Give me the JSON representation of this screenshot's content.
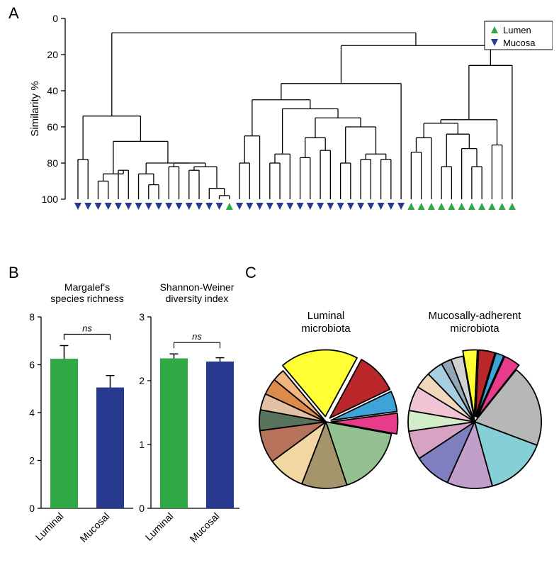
{
  "panelA": {
    "label": "A",
    "yaxis_label": "Similarity %",
    "yticks": [
      0,
      20,
      40,
      60,
      80,
      100
    ],
    "ylim": [
      0,
      100
    ],
    "legend": {
      "items": [
        {
          "label": "Lumen",
          "symbol": "triangle-up",
          "color": "#2fa846"
        },
        {
          "label": "Mucosa",
          "symbol": "triangle-down",
          "color": "#283a8f"
        }
      ],
      "box_stroke": "#000000",
      "box_fill": "#ffffff"
    },
    "line_color": "#000000",
    "line_width": 1.3,
    "tree": {
      "h": 8,
      "children": [
        {
          "h": 54,
          "children": [
            {
              "h": 78,
              "children": [
                {
                  "leaf": "M"
                },
                {
                  "leaf": "M"
                }
              ]
            },
            {
              "h": 68,
              "children": [
                {
                  "h": 86,
                  "children": [
                    {
                      "h": 90,
                      "children": [
                        {
                          "leaf": "M"
                        },
                        {
                          "leaf": "M"
                        }
                      ]
                    },
                    {
                      "h": 84,
                      "children": [
                        {
                          "leaf": "M"
                        },
                        {
                          "leaf": "M"
                        }
                      ]
                    }
                  ]
                },
                {
                  "h": 80,
                  "children": [
                    {
                      "h": 86,
                      "children": [
                        {
                          "leaf": "M"
                        },
                        {
                          "h": 92,
                          "children": [
                            {
                              "leaf": "M"
                            },
                            {
                              "leaf": "M"
                            }
                          ]
                        }
                      ]
                    },
                    {
                      "h": 80,
                      "children": [
                        {
                          "h": 82,
                          "children": [
                            {
                              "leaf": "M"
                            },
                            {
                              "leaf": "M"
                            }
                          ]
                        },
                        {
                          "h": 82,
                          "children": [
                            {
                              "h": 84,
                              "children": [
                                {
                                  "leaf": "M"
                                },
                                {
                                  "leaf": "M"
                                }
                              ]
                            },
                            {
                              "h": 94,
                              "children": [
                                {
                                  "leaf": "M"
                                },
                                {
                                  "h": 98,
                                  "children": [
                                    {
                                      "leaf": "M"
                                    },
                                    {
                                      "leaf": "L"
                                    }
                                  ]
                                }
                              ]
                            }
                          ]
                        }
                      ]
                    }
                  ]
                }
              ]
            }
          ]
        },
        {
          "h": 15,
          "children": [
            {
              "h": 36,
              "children": [
                {
                  "h": 45,
                  "children": [
                    {
                      "h": 65,
                      "children": [
                        {
                          "h": 80,
                          "children": [
                            {
                              "leaf": "M"
                            },
                            {
                              "leaf": "M"
                            }
                          ]
                        },
                        {
                          "leaf": "M"
                        }
                      ]
                    },
                    {
                      "h": 50,
                      "children": [
                        {
                          "h": 75,
                          "children": [
                            {
                              "h": 80,
                              "children": [
                                {
                                  "leaf": "M"
                                },
                                {
                                  "leaf": "M"
                                }
                              ]
                            },
                            {
                              "leaf": "M"
                            }
                          ]
                        },
                        {
                          "h": 55,
                          "children": [
                            {
                              "h": 66,
                              "children": [
                                {
                                  "h": 77,
                                  "children": [
                                    {
                                      "leaf": "M"
                                    },
                                    {
                                      "leaf": "M"
                                    }
                                  ]
                                },
                                {
                                  "h": 73,
                                  "children": [
                                    {
                                      "leaf": "M"
                                    },
                                    {
                                      "leaf": "M"
                                    }
                                  ]
                                }
                              ]
                            },
                            {
                              "h": 60,
                              "children": [
                                {
                                  "h": 80,
                                  "children": [
                                    {
                                      "leaf": "M"
                                    },
                                    {
                                      "leaf": "M"
                                    }
                                  ]
                                },
                                {
                                  "h": 75,
                                  "children": [
                                    {
                                      "h": 78,
                                      "children": [
                                        {
                                          "leaf": "M"
                                        },
                                        {
                                          "leaf": "M"
                                        }
                                      ]
                                    },
                                    {
                                      "h": 78,
                                      "children": [
                                        {
                                          "leaf": "M"
                                        },
                                        {
                                          "leaf": "M"
                                        }
                                      ]
                                    }
                                  ]
                                }
                              ]
                            }
                          ]
                        }
                      ]
                    }
                  ]
                },
                {
                  "leaf": "M"
                }
              ]
            },
            {
              "h": 26,
              "children": [
                {
                  "h": 56,
                  "children": [
                    {
                      "h": 58,
                      "children": [
                        {
                          "h": 66,
                          "children": [
                            {
                              "h": 74,
                              "children": [
                                {
                                  "leaf": "L"
                                },
                                {
                                  "leaf": "L"
                                }
                              ]
                            },
                            {
                              "leaf": "L"
                            }
                          ]
                        },
                        {
                          "h": 64,
                          "children": [
                            {
                              "h": 82,
                              "children": [
                                {
                                  "leaf": "L"
                                },
                                {
                                  "leaf": "L"
                                }
                              ]
                            },
                            {
                              "h": 72,
                              "children": [
                                {
                                  "leaf": "L"
                                },
                                {
                                  "h": 82,
                                  "children": [
                                    {
                                      "leaf": "L"
                                    },
                                    {
                                      "leaf": "L"
                                    }
                                  ]
                                }
                              ]
                            }
                          ]
                        }
                      ]
                    },
                    {
                      "h": 70,
                      "children": [
                        {
                          "leaf": "L"
                        },
                        {
                          "leaf": "L"
                        }
                      ]
                    }
                  ]
                },
                {
                  "leaf": "L"
                }
              ]
            }
          ]
        }
      ]
    }
  },
  "panelB": {
    "label": "B",
    "axis_color": "#000000",
    "axis_width": 1.3,
    "ns_label": "ns",
    "ns_font_style": "italic",
    "xcat_labels": [
      "Luminal",
      "Mucosal"
    ],
    "xlabel_angle": -45,
    "xlabel_fontsize": 14,
    "charts": [
      {
        "title": "Margalef's\nspecies richness",
        "ylim": [
          0,
          8
        ],
        "yticks": [
          0,
          2,
          4,
          6,
          8
        ],
        "tick_fontsize": 14,
        "bars": [
          {
            "mean": 6.25,
            "err": 0.55,
            "color": "#2fa846"
          },
          {
            "mean": 5.05,
            "err": 0.5,
            "color": "#283a8f"
          }
        ],
        "bar_width": 0.6
      },
      {
        "title": "Shannon-Weiner\ndiversity index",
        "ylim": [
          0,
          3
        ],
        "yticks": [
          0,
          1,
          2,
          3
        ],
        "tick_fontsize": 14,
        "bars": [
          {
            "mean": 2.35,
            "err": 0.07,
            "color": "#2fa846"
          },
          {
            "mean": 2.3,
            "err": 0.06,
            "color": "#283a8f"
          }
        ],
        "bar_width": 0.6
      }
    ]
  },
  "panelC": {
    "label": "C",
    "pies": [
      {
        "title": "Luminal\nmicrobiota",
        "stroke": "#000000",
        "stroke_width": 1.8,
        "start_angle": -130,
        "slices": [
          {
            "value": 19,
            "color": "#ffff33",
            "explode": 0.08
          },
          {
            "value": 10,
            "color": "#b9272a",
            "explode": 0.08
          },
          {
            "value": 5,
            "color": "#3da3d9",
            "explode": 0.08
          },
          {
            "value": 5,
            "color": "#e83b89",
            "explode": 0.08
          },
          {
            "value": 17,
            "color": "#94c191",
            "explode": 0
          },
          {
            "value": 11,
            "color": "#a5956d",
            "explode": 0
          },
          {
            "value": 9,
            "color": "#f2d7a2",
            "explode": 0
          },
          {
            "value": 8,
            "color": "#b6725b",
            "explode": 0
          },
          {
            "value": 5,
            "color": "#59725b",
            "explode": 0
          },
          {
            "value": 4,
            "color": "#e2c1a4",
            "explode": 0
          },
          {
            "value": 4,
            "color": "#dd8b48",
            "explode": 0
          },
          {
            "value": 3,
            "color": "#efb682",
            "explode": 0
          }
        ]
      },
      {
        "title": "Mucosally-adherent\nmicrobiota",
        "stroke": "#000000",
        "stroke_width": 1.8,
        "start_angle": -100,
        "slices": [
          {
            "value": 3.5,
            "color": "#ffff33",
            "explode": 0.08
          },
          {
            "value": 4.0,
            "color": "#b9272a",
            "explode": 0.08
          },
          {
            "value": 2.0,
            "color": "#3da3d9",
            "explode": 0.08
          },
          {
            "value": 4.0,
            "color": "#e83b89",
            "explode": 0.08
          },
          {
            "value": 20.0,
            "color": "#b7b7b7",
            "explode": 0
          },
          {
            "value": 15.0,
            "color": "#85cfd6",
            "explode": 0
          },
          {
            "value": 11.0,
            "color": "#c29fca",
            "explode": 0
          },
          {
            "value": 9.0,
            "color": "#7f7fc0",
            "explode": 0
          },
          {
            "value": 7.0,
            "color": "#d6a3c2",
            "explode": 0
          },
          {
            "value": 5.0,
            "color": "#d2edc7",
            "explode": 0
          },
          {
            "value": 6.0,
            "color": "#f0c4d5",
            "explode": 0
          },
          {
            "value": 4.0,
            "color": "#f2d7bd",
            "explode": 0
          },
          {
            "value": 4.0,
            "color": "#a7cde3",
            "explode": 0
          },
          {
            "value": 2.5,
            "color": "#93a8b6",
            "explode": 0
          },
          {
            "value": 3.0,
            "color": "#d1d1d1",
            "explode": 0
          }
        ]
      }
    ]
  }
}
